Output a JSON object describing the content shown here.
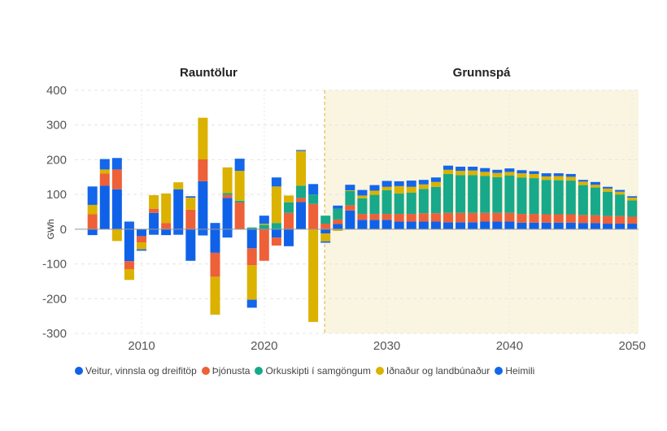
{
  "chart_data": {
    "type": "bar",
    "stacked": true,
    "ylabel": "GWh",
    "ylim": [
      -300,
      400
    ],
    "yticks": [
      -300,
      -200,
      -100,
      0,
      100,
      200,
      300,
      400
    ],
    "xticks": [
      2010,
      2020,
      2030,
      2040,
      2050
    ],
    "grid": true,
    "legend_position": "bottom",
    "sections": [
      {
        "label": "Rauntölur",
        "from": 2006,
        "to": 2024
      },
      {
        "label": "Grunnspá",
        "from": 2025,
        "to": 2050,
        "shade": "#faf5e1"
      }
    ],
    "categories": [
      2006,
      2007,
      2008,
      2009,
      2010,
      2011,
      2012,
      2013,
      2014,
      2015,
      2016,
      2017,
      2018,
      2019,
      2020,
      2021,
      2022,
      2023,
      2024,
      2025,
      2026,
      2027,
      2028,
      2029,
      2030,
      2031,
      2032,
      2033,
      2034,
      2035,
      2036,
      2037,
      2038,
      2039,
      2040,
      2041,
      2042,
      2043,
      2044,
      2045,
      2046,
      2047,
      2048,
      2049,
      2050
    ],
    "series": [
      {
        "name": "Veitur, vinnsla og dreifitöp",
        "color": "#0f62e8",
        "values": [
          -17,
          125,
          115,
          -92,
          -20,
          47,
          -17,
          115,
          -91,
          138,
          -68,
          90,
          0,
          -55,
          0,
          -24,
          -49,
          78,
          0,
          -12,
          15,
          54,
          27,
          27,
          27,
          22,
          22,
          22,
          22,
          20,
          20,
          20,
          22,
          22,
          22,
          19,
          19,
          19,
          19,
          19,
          18,
          18,
          16,
          16,
          16
        ]
      },
      {
        "name": "Þjónusta",
        "color": "#ee6038",
        "values": [
          43,
          35,
          57,
          -23,
          -18,
          12,
          18,
          0,
          56,
          63,
          -69,
          9,
          77,
          -49,
          -91,
          -23,
          47,
          12,
          73,
          16,
          13,
          15,
          17,
          17,
          17,
          22,
          22,
          24,
          24,
          27,
          27,
          27,
          25,
          25,
          25,
          25,
          25,
          24,
          24,
          24,
          23,
          22,
          22,
          22,
          20
        ]
      },
      {
        "name": "Orkuskipti í samgöngum",
        "color": "#17a98a",
        "values": [
          0,
          0,
          0,
          0,
          0,
          0,
          0,
          0,
          0,
          0,
          0,
          5,
          5,
          5,
          13,
          18,
          30,
          35,
          27,
          23,
          31,
          41,
          45,
          55,
          68,
          59,
          61,
          70,
          76,
          112,
          109,
          109,
          106,
          103,
          108,
          105,
          103,
          99,
          98,
          97,
          86,
          80,
          70,
          62,
          47
        ]
      },
      {
        "name": "Iðnaður og landbúnaður",
        "color": "#dbb200",
        "values": [
          27,
          12,
          -34,
          -31,
          -20,
          39,
          85,
          20,
          35,
          120,
          -109,
          74,
          86,
          -99,
          3,
          105,
          20,
          100,
          -267,
          -23,
          -5,
          2,
          8,
          12,
          10,
          21,
          17,
          13,
          14,
          12,
          12,
          13,
          12,
          12,
          10,
          12,
          12,
          10,
          12,
          11,
          10,
          8,
          9,
          8,
          8
        ]
      },
      {
        "name": "Heimili",
        "color": "#1466ea",
        "values": [
          53,
          30,
          33,
          22,
          -4,
          -16,
          0,
          -16,
          4,
          -18,
          18,
          -24,
          35,
          -23,
          23,
          26,
          0,
          3,
          30,
          -4,
          9,
          16,
          16,
          16,
          17,
          14,
          18,
          13,
          13,
          12,
          12,
          11,
          11,
          9,
          10,
          9,
          8,
          9,
          8,
          8,
          5,
          8,
          5,
          5,
          4
        ]
      }
    ]
  }
}
